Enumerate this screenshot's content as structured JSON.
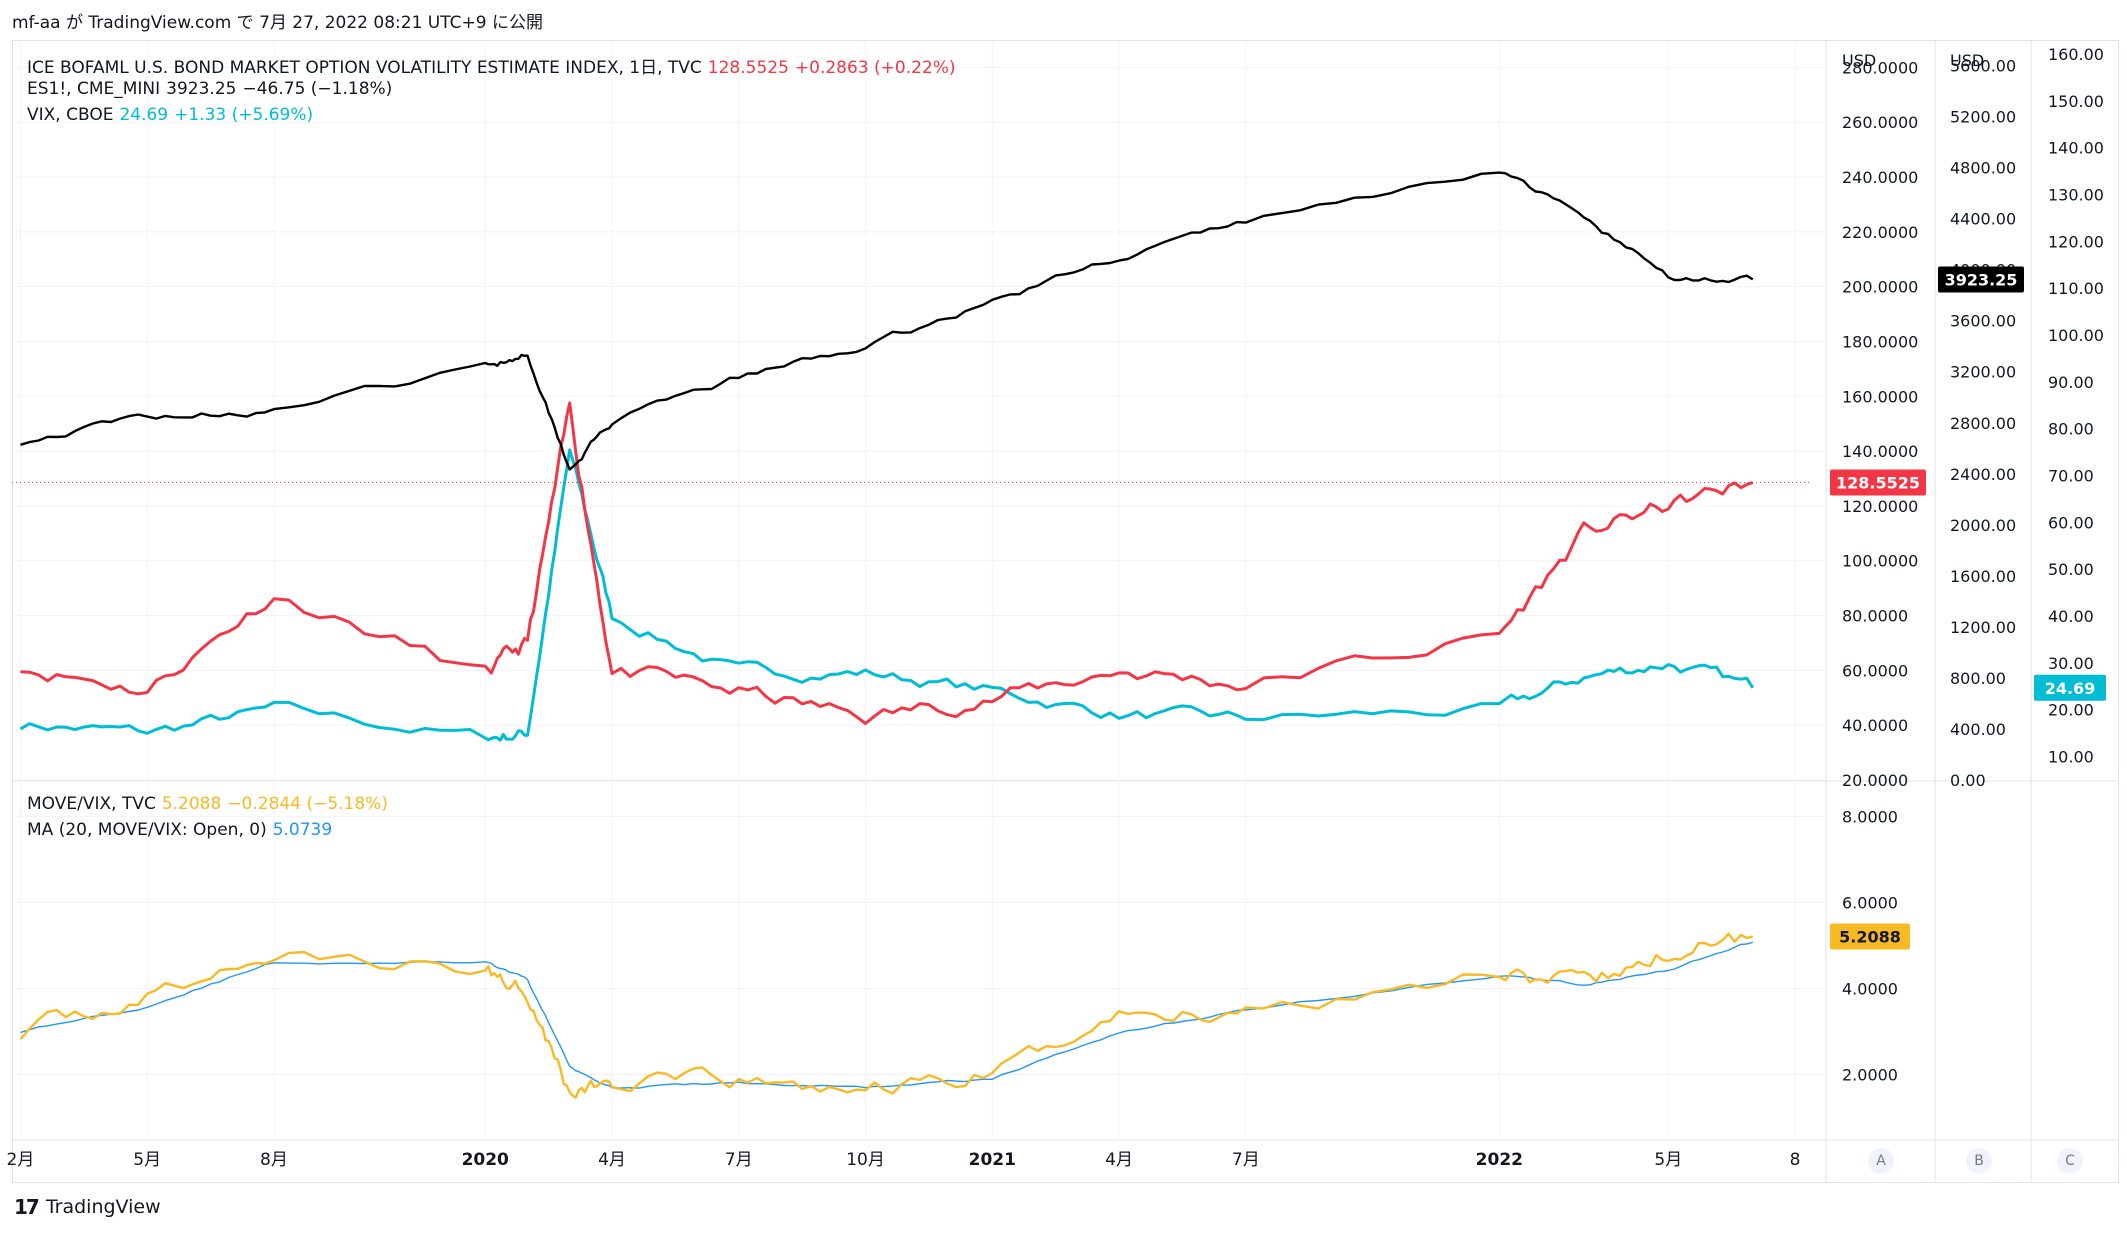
{
  "header": {
    "publish_text": "mf-aa が TradingView.com で 7月 27, 2022 08:21 UTC+9 に公開"
  },
  "footer": {
    "brand": "TradingView",
    "logo_mark": "17"
  },
  "legend": {
    "move": {
      "name": "ICE BOFAML U.S. BOND MARKET OPTION VOLATILITY ESTIMATE INDEX, 1日, TVC",
      "value": "128.5525",
      "change": "+0.2863 (+0.22%)"
    },
    "es": {
      "name": "ES1!, CME_MINI",
      "value": "3923.25",
      "change": "−46.75 (−1.18%)"
    },
    "vix": {
      "name": "VIX, CBOE",
      "value": "24.69",
      "change": "+1.33 (+5.69%)"
    },
    "ratio": {
      "name": "MOVE/VIX, TVC",
      "value": "5.2088",
      "change": "−0.2844 (−5.18%)"
    },
    "ma": {
      "name": "MA (20, MOVE/VIX: Open, 0)",
      "value": "5.0739"
    }
  },
  "scales": {
    "a_unit": "USD",
    "b_unit": "USD",
    "a_ticks": [
      "280.0000",
      "260.0000",
      "240.0000",
      "220.0000",
      "200.0000",
      "180.0000",
      "160.0000",
      "140.0000",
      "120.0000",
      "100.0000",
      "80.0000",
      "60.0000",
      "40.0000",
      "20.0000"
    ],
    "b_ticks": [
      "5600.00",
      "5200.00",
      "4800.00",
      "4400.00",
      "4000.00",
      "3600.00",
      "3200.00",
      "2800.00",
      "2400.00",
      "2000.00",
      "1600.00",
      "1200.00",
      "800.00",
      "400.00",
      "0.00"
    ],
    "c_ticks": [
      "160.00",
      "150.00",
      "140.00",
      "130.00",
      "120.00",
      "110.00",
      "100.00",
      "90.00",
      "80.00",
      "70.00",
      "60.00",
      "50.00",
      "40.00",
      "30.00",
      "20.00",
      "10.00"
    ],
    "lower_ticks": [
      "8.0000",
      "6.0000",
      "4.0000",
      "2.0000"
    ],
    "scale_buttons": [
      "A",
      "B",
      "C"
    ],
    "last_labels": {
      "move": "128.5525",
      "es": "3923.25",
      "vix": "24.69",
      "ratio": "5.2088"
    }
  },
  "time_axis": [
    "2月",
    "5月",
    "8月",
    "2020",
    "4月",
    "7月",
    "10月",
    "2021",
    "4月",
    "7月",
    "2022",
    "5月",
    "8"
  ],
  "colors": {
    "move": "#f23645",
    "es": "#000000",
    "vix": "#00bcd4",
    "ratio": "#f7b924",
    "ma": "#2196f3",
    "grid": "#f0f3fa",
    "axis_text": "#131722"
  },
  "chart_data": [
    {
      "type": "line",
      "title": "",
      "xlabel": "",
      "ylabel": "USD",
      "x": [
        "2019-02",
        "2019-05",
        "2019-08",
        "2020-01",
        "2020-02",
        "2020-03",
        "2020-04",
        "2020-07",
        "2020-10",
        "2021-01",
        "2021-04",
        "2021-07",
        "2022-01",
        "2022-03",
        "2022-05",
        "2022-07"
      ],
      "series": [
        {
          "name": "ICE BOFAML U.S. BOND MARKET OPTION VOLATILITY ESTIMATE INDEX",
          "axis": "A",
          "values": [
            62,
            53,
            88,
            58,
            70,
            155,
            60,
            52,
            43,
            50,
            60,
            55,
            73,
            110,
            120,
            128.55
          ]
        },
        {
          "name": "ES1!",
          "axis": "B",
          "values": [
            2650,
            2850,
            2900,
            3240,
            3350,
            2450,
            2800,
            3150,
            3400,
            3750,
            4100,
            4380,
            4790,
            4400,
            3950,
            3923.25
          ]
        },
        {
          "name": "VIX",
          "axis": "C",
          "values": [
            17,
            15,
            20,
            14,
            15,
            75,
            40,
            28,
            28,
            24,
            19,
            18,
            20,
            27,
            30,
            24.69
          ]
        }
      ],
      "ylim_a": [
        20,
        290
      ],
      "ylim_b": [
        0,
        5800
      ],
      "ylim_c": [
        5,
        163
      ],
      "grid": true,
      "legend": "top-left"
    },
    {
      "type": "line",
      "title": "",
      "xlabel": "",
      "ylabel": "",
      "x": [
        "2019-02",
        "2019-05",
        "2019-08",
        "2020-01",
        "2020-02",
        "2020-03",
        "2020-04",
        "2020-07",
        "2020-10",
        "2021-01",
        "2021-04",
        "2021-07",
        "2022-01",
        "2022-03",
        "2022-05",
        "2022-07"
      ],
      "series": [
        {
          "name": "MOVE/VIX",
          "values": [
            3.0,
            3.8,
            4.8,
            4.4,
            4.0,
            1.6,
            1.8,
            1.8,
            1.6,
            2.0,
            3.4,
            3.5,
            4.5,
            4.0,
            4.8,
            5.2088
          ]
        },
        {
          "name": "MA (20, MOVE/VIX: Open, 0)",
          "values": [
            3.0,
            3.6,
            4.6,
            4.6,
            4.2,
            2.2,
            1.7,
            1.8,
            1.7,
            1.9,
            3.0,
            3.5,
            4.3,
            4.1,
            4.4,
            5.0739
          ]
        }
      ],
      "ylim": [
        0.5,
        8.8
      ],
      "grid": true,
      "legend": "top-left"
    }
  ]
}
